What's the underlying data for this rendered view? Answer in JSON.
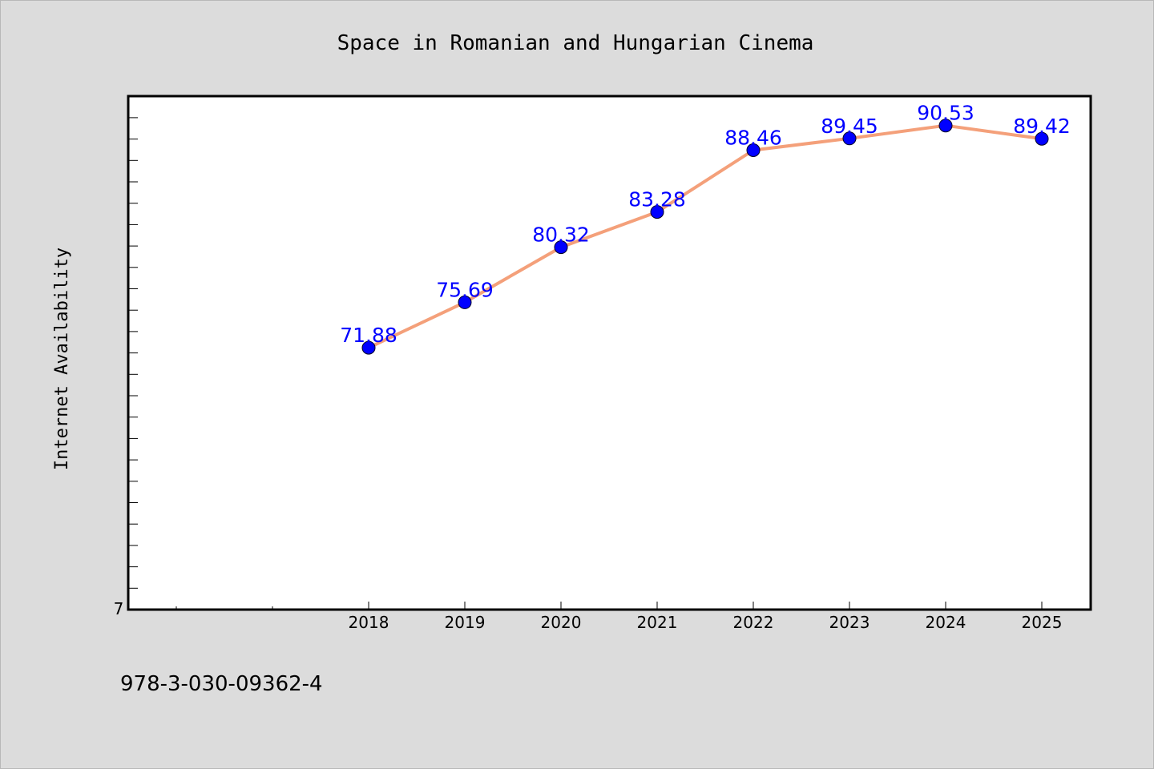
{
  "chart_data": {
    "type": "line",
    "title": "Space in Romanian and Hungarian Cinema",
    "xlabel": "",
    "ylabel": "Internet Availability",
    "categories": [
      "2018",
      "2019",
      "2020",
      "2021",
      "2022",
      "2023",
      "2024",
      "2025"
    ],
    "series": [
      {
        "values": [
          71.88,
          75.69,
          80.32,
          83.28,
          88.46,
          89.45,
          90.53,
          89.42
        ],
        "labels": [
          "71.88",
          "75.69",
          "80.32",
          "83.28",
          "88.46",
          "89.45",
          "90.53",
          "89.42"
        ]
      }
    ],
    "y_tick_labels": [
      "7"
    ],
    "ylim": [
      49.9,
      93.0
    ],
    "grid": false,
    "legend": "none",
    "colors": {
      "line": "#f4a07a",
      "marker": "#0000ff",
      "data_label": "#0000ff",
      "background": "#dcdcdc",
      "plot_background": "#ffffff"
    }
  },
  "footnote": "978-3-030-09362-4"
}
